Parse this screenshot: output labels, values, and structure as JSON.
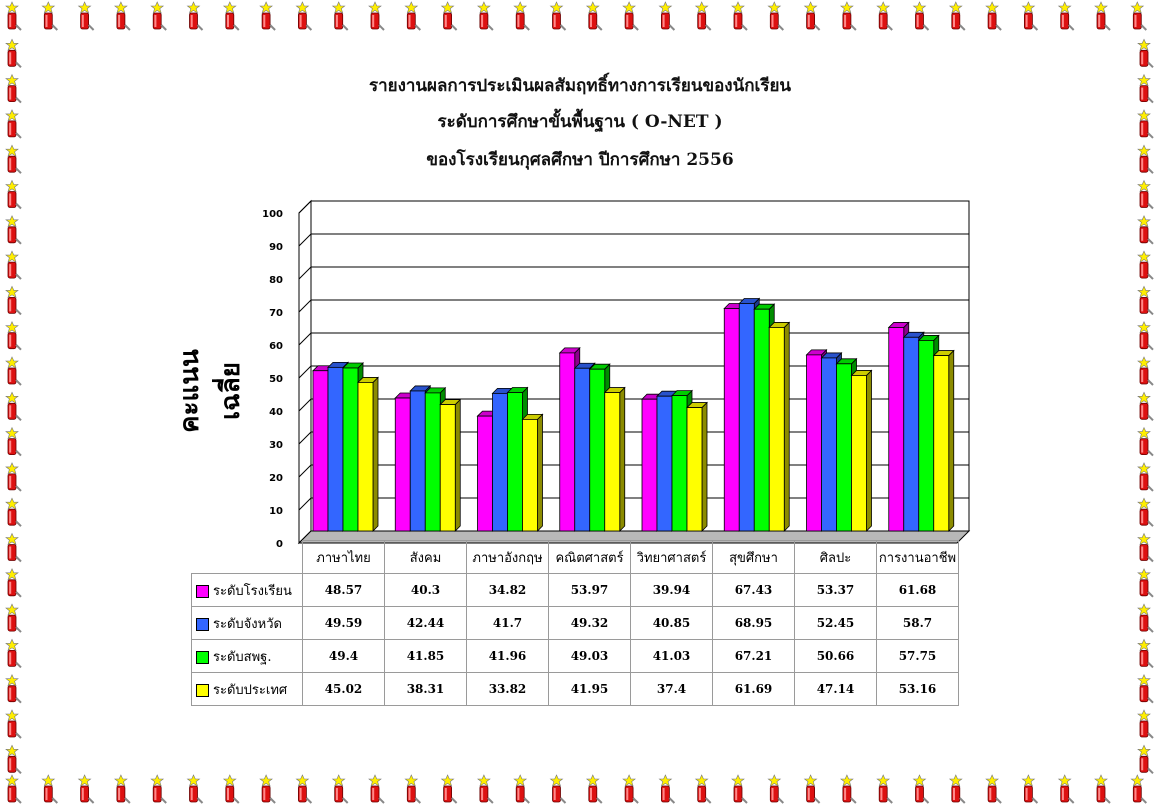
{
  "title_lines": [
    "รายงานผลการประเมินผลสัมฤทธิ์ทางการเรียนของนักเรียน",
    "ระดับการศึกษาขั้นพื้นฐาน  ( O-NET )",
    "ของโรงเรียนกุศลศึกษา ปีการศึกษา 2556"
  ],
  "chart_data": {
    "type": "bar",
    "title": "รายงานผลการประเมินผลสัมฤทธิ์ทางการเรียนของนักเรียน ระดับการศึกษาขั้นพื้นฐาน ( O-NET ) ของโรงเรียนกุศลศึกษา ปีการศึกษา 2556",
    "ylabel": "คะแนนเฉลี่ย",
    "ylim": [
      0,
      100
    ],
    "yticks": [
      "0",
      "10",
      "20",
      "30",
      "40",
      "50",
      "60",
      "70",
      "80",
      "90",
      "100"
    ],
    "grid": true,
    "categories": [
      "ภาษาไทย",
      "สังคม",
      "ภาษาอังกฤษ",
      "คณิตศาสตร์",
      "วิทยาศาสตร์",
      "สุขศึกษา",
      "ศิลปะ",
      "การงานอาชีพ"
    ],
    "series": [
      {
        "name": "ระดับโรงเรียน",
        "color": "#ff00ff",
        "values": [
          48.57,
          40.3,
          34.82,
          53.97,
          39.94,
          67.43,
          53.37,
          61.68
        ],
        "labels": [
          "48.57",
          "40.3",
          "34.82",
          "53.97",
          "39.94",
          "67.43",
          "53.37",
          "61.68"
        ]
      },
      {
        "name": "ระดับจังหวัด",
        "color": "#3366ff",
        "values": [
          49.59,
          42.44,
          41.7,
          49.32,
          40.85,
          68.95,
          52.45,
          58.7
        ],
        "labels": [
          "49.59",
          "42.44",
          "41.7",
          "49.32",
          "40.85",
          "68.95",
          "52.45",
          "58.7"
        ]
      },
      {
        "name": "ระดับสพฐ.",
        "color": "#00ff00",
        "values": [
          49.4,
          41.85,
          41.96,
          49.03,
          41.03,
          67.21,
          50.66,
          57.75
        ],
        "labels": [
          "49.4",
          "41.85",
          "41.96",
          "49.03",
          "41.03",
          "67.21",
          "50.66",
          "57.75"
        ]
      },
      {
        "name": "ระดับประเทศ",
        "color": "#ffff00",
        "values": [
          45.02,
          38.31,
          33.82,
          41.95,
          37.4,
          61.69,
          47.14,
          53.16
        ],
        "labels": [
          "45.02",
          "38.31",
          "33.82",
          "41.95",
          "37.4",
          "61.69",
          "47.14",
          "53.16"
        ]
      }
    ]
  }
}
